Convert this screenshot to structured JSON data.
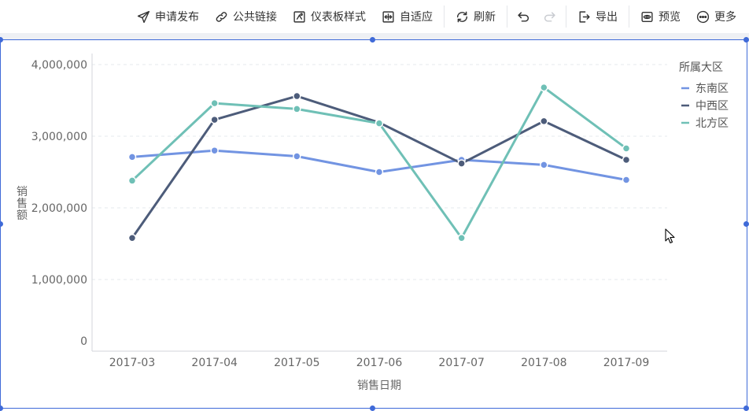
{
  "toolbar": {
    "publish": "申请发布",
    "public_link": "公共链接",
    "dashboard_style": "仪表板样式",
    "adaptive": "自适应",
    "refresh": "刷新",
    "export": "导出",
    "preview": "预览",
    "more": "更多"
  },
  "chart_data": {
    "type": "line",
    "title": "",
    "xlabel": "销售日期",
    "ylabel": "销售额",
    "categories": [
      "2017-03",
      "2017-04",
      "2017-05",
      "2017-06",
      "2017-07",
      "2017-08",
      "2017-09"
    ],
    "yticks": [
      "0",
      "1,000,000",
      "2,000,000",
      "3,000,000",
      "4,000,000"
    ],
    "ylim": [
      0,
      4000000
    ],
    "grid": true,
    "legend": {
      "title": "所属大区",
      "position": "right"
    },
    "series": [
      {
        "name": "东南区",
        "color": "#7294e2",
        "values": [
          2710000,
          2800000,
          2720000,
          2500000,
          2670000,
          2600000,
          2390000
        ]
      },
      {
        "name": "中西区",
        "color": "#4d5c7a",
        "values": [
          1580000,
          3230000,
          3560000,
          3190000,
          2620000,
          3210000,
          2670000
        ]
      },
      {
        "name": "北方区",
        "color": "#6fc0b6",
        "values": [
          2380000,
          3460000,
          3380000,
          3180000,
          1580000,
          3680000,
          2830000
        ]
      }
    ]
  }
}
